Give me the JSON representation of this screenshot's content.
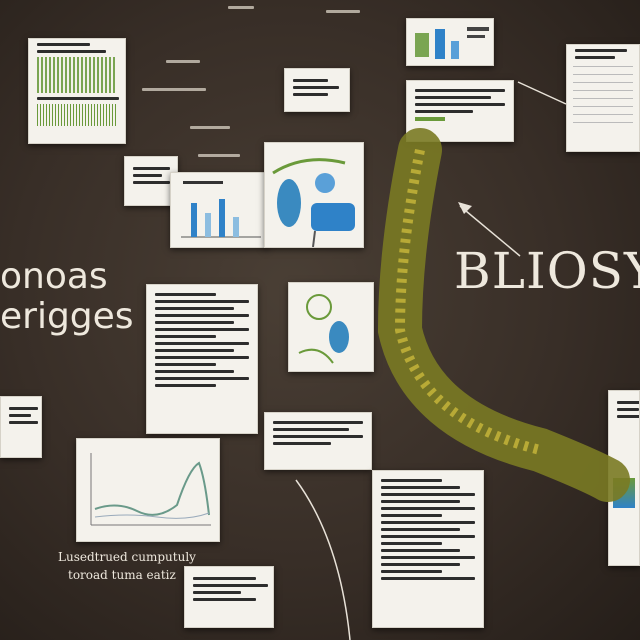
{
  "title_right": "BLIOSY",
  "title_left_line1": "onoas",
  "title_left_line2": "erigges",
  "caption_bottom_left_line1": "Lusedtrued cumputuly",
  "caption_bottom_left_line2": "toroad tuma eatiz",
  "colors": {
    "background": "#382e27",
    "card": "#f4f2ec",
    "accent_green": "#6a9a3a",
    "accent_blue": "#2f82c8",
    "stem": "#8a8a2a"
  }
}
